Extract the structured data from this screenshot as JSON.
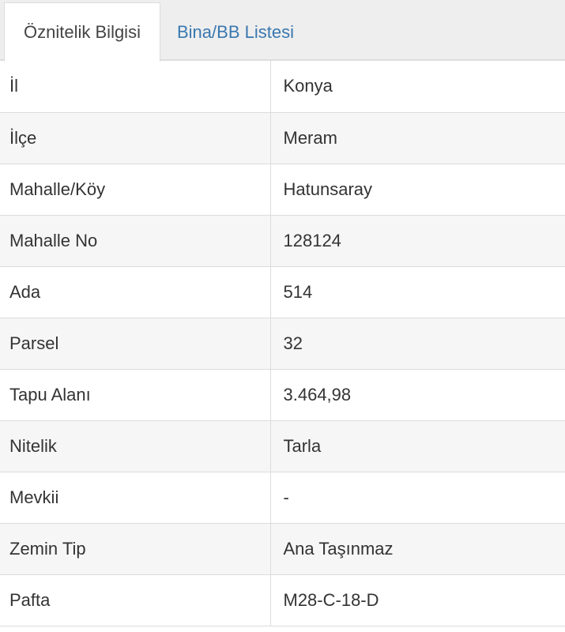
{
  "tabs": [
    {
      "label": "Öznitelik Bilgisi",
      "active": true
    },
    {
      "label": "Bina/BB Listesi",
      "active": false
    }
  ],
  "rows": [
    {
      "key": "İl",
      "value": "Konya"
    },
    {
      "key": "İlçe",
      "value": "Meram"
    },
    {
      "key": "Mahalle/Köy",
      "value": "Hatunsaray"
    },
    {
      "key": "Mahalle No",
      "value": "128124"
    },
    {
      "key": "Ada",
      "value": "514"
    },
    {
      "key": "Parsel",
      "value": "32"
    },
    {
      "key": "Tapu Alanı",
      "value": "3.464,98"
    },
    {
      "key": "Nitelik",
      "value": "Tarla"
    },
    {
      "key": "Mevkii",
      "value": "-"
    },
    {
      "key": "Zemin Tip",
      "value": "Ana Taşınmaz"
    },
    {
      "key": "Pafta",
      "value": "M28-C-18-D"
    }
  ]
}
